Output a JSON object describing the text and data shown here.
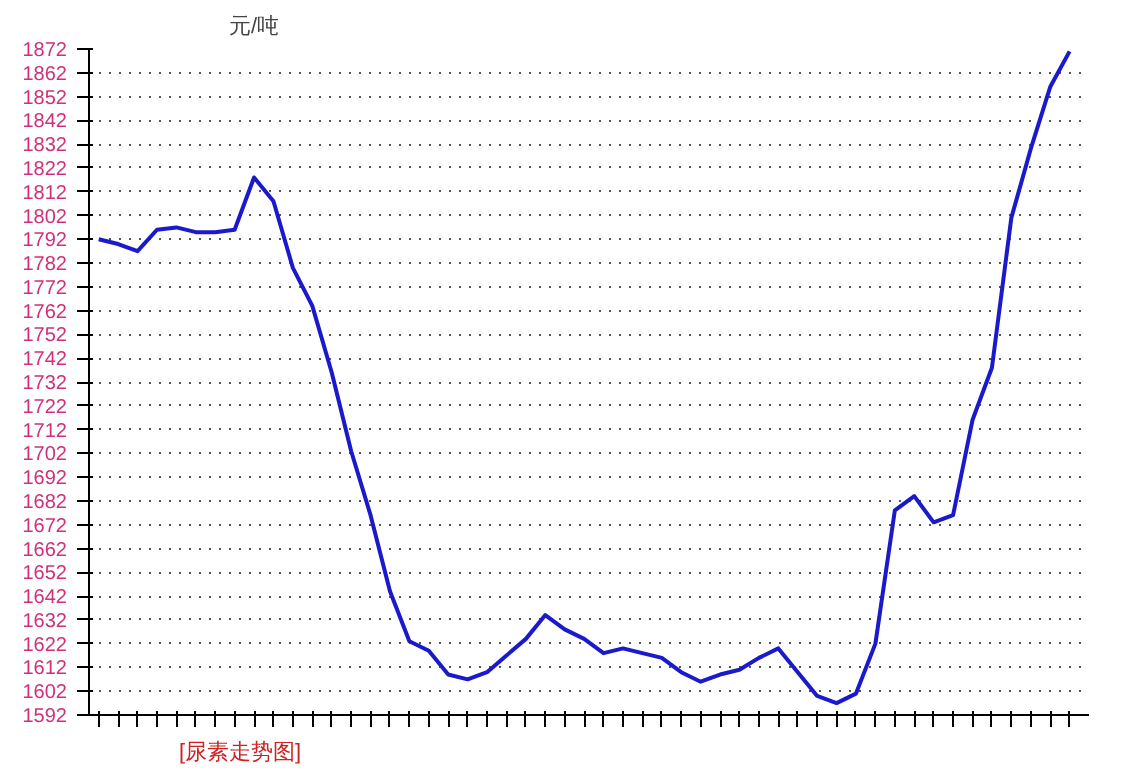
{
  "chart_data": {
    "type": "line",
    "ylabel": "元/吨",
    "annotations": [
      "[尿素走势图]"
    ],
    "categories": [
      null,
      null,
      null,
      null,
      null,
      null,
      null,
      null,
      null,
      null,
      null,
      null,
      null,
      null,
      null,
      null,
      null,
      null,
      null,
      null,
      null,
      null,
      null,
      null,
      null,
      null,
      null,
      null,
      null,
      null,
      null,
      null,
      null,
      null,
      null,
      null,
      null,
      null,
      null,
      null,
      null,
      null,
      null,
      null,
      null,
      null,
      null,
      null,
      null,
      null,
      null
    ],
    "series": [
      {
        "color": "#1a1acc",
        "values": [
          1792,
          1790,
          1787,
          1796,
          1797,
          1795,
          1795,
          1796,
          1818,
          1808,
          1780,
          1764,
          1736,
          1703,
          1676,
          1644,
          1623,
          1619,
          1609,
          1607,
          1610,
          1617,
          1624,
          1634,
          1628,
          1624,
          1618,
          1620,
          1618,
          1616,
          1610,
          1606,
          1609,
          1611,
          1616,
          1620,
          1610,
          1600,
          1597,
          1601,
          1622,
          1678,
          1684,
          1673,
          1676,
          1716,
          1738,
          1801,
          1830,
          1856,
          1871
        ]
      }
    ],
    "ylim": [
      1592,
      1872
    ],
    "yticks": [
      1592,
      1602,
      1612,
      1622,
      1632,
      1642,
      1652,
      1662,
      1672,
      1682,
      1692,
      1702,
      1712,
      1722,
      1732,
      1742,
      1752,
      1762,
      1772,
      1782,
      1792,
      1802,
      1812,
      1822,
      1832,
      1842,
      1852,
      1862,
      1872
    ],
    "grid": "y",
    "tick_labels": "y",
    "marker": "none",
    "line_style": "solid"
  }
}
